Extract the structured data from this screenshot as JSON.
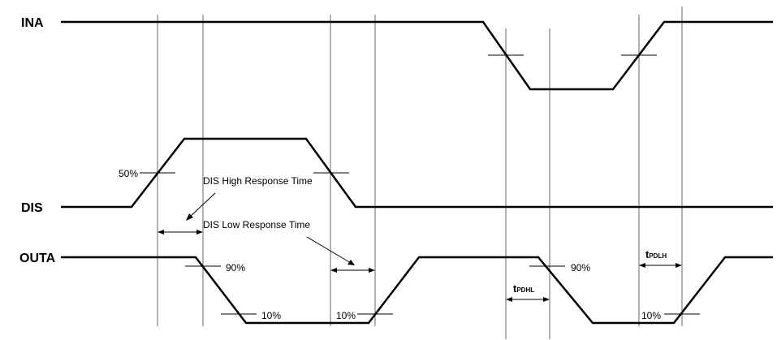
{
  "signals": {
    "ina": "INA",
    "dis": "DIS",
    "outa": "OUTA"
  },
  "labels": {
    "dis_50": "50%",
    "dis_high_response": "DIS High Response Time",
    "dis_low_response": "DIS Low Response Time",
    "out_90_a": "90%",
    "out_10_a": "10%",
    "out_10_b": "10%",
    "out_90_b": "90%",
    "out_10_c": "10%"
  },
  "timing": {
    "tpdhl_main": "t",
    "tpdhl_sub": "PDHL",
    "tpdlh_main": "t",
    "tpdlh_sub": "PDLH"
  }
}
